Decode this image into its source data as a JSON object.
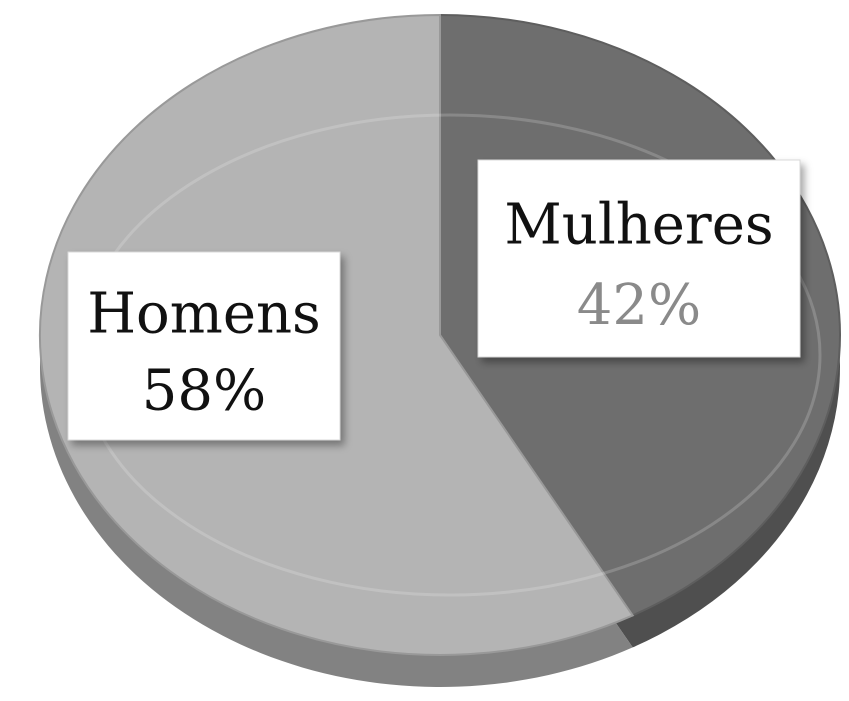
{
  "chart_data": {
    "type": "pie",
    "categories": [
      "Mulheres",
      "Homens"
    ],
    "values": [
      42,
      58
    ],
    "value_labels": [
      "42%",
      "58%"
    ],
    "colors": [
      "#6e6e6e",
      "#b4b4b4"
    ]
  }
}
